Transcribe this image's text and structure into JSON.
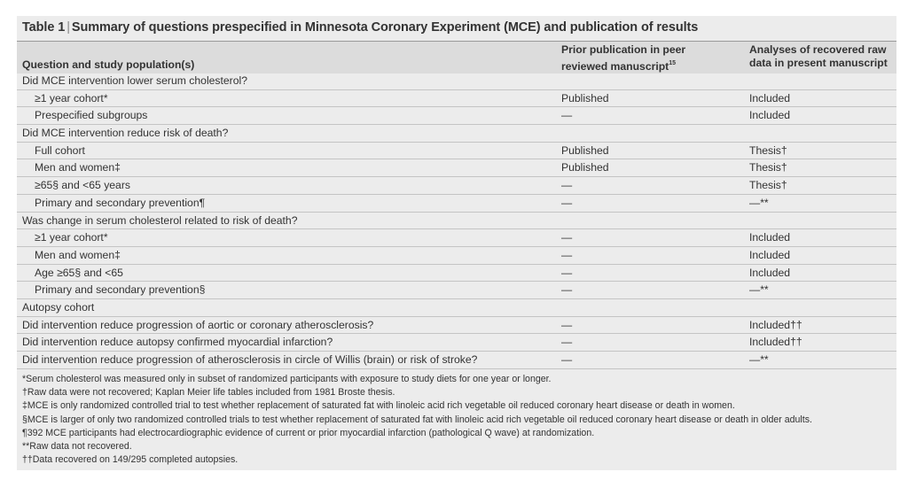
{
  "table": {
    "label": "Table 1",
    "separator": "|",
    "caption": "Summary of questions prespecified in Minnesota Coronary Experiment (MCE) and publication of results",
    "headers": {
      "question": "Question and study population(s)",
      "prior_line1": "Prior publication in peer",
      "prior_line2": "reviewed manuscript",
      "prior_ref": "15",
      "analyses_line1": "Analyses of recovered raw",
      "analyses_line2": "data in present manuscript"
    },
    "rows": [
      {
        "question": "Did MCE intervention lower serum cholesterol?",
        "prior": "",
        "analyses": "",
        "indent": false
      },
      {
        "question": "≥1 year cohort*",
        "prior": "Published",
        "analyses": "Included",
        "indent": true
      },
      {
        "question": "Prespecified subgroups",
        "prior": "—",
        "analyses": "Included",
        "indent": true
      },
      {
        "question": "Did MCE intervention reduce risk of death?",
        "prior": "",
        "analyses": "",
        "indent": false
      },
      {
        "question": "Full cohort",
        "prior": "Published",
        "analyses": "Thesis†",
        "indent": true
      },
      {
        "question": "Men and women‡",
        "prior": "Published",
        "analyses": "Thesis†",
        "indent": true
      },
      {
        "question": "≥65§ and <65 years",
        "prior": "—",
        "analyses": "Thesis†",
        "indent": true
      },
      {
        "question": "Primary and secondary prevention¶",
        "prior": "—",
        "analyses": "—**",
        "indent": true
      },
      {
        "question": "Was change in serum cholesterol related to risk of death?",
        "prior": "",
        "analyses": "",
        "indent": false
      },
      {
        "question": "≥1 year cohort*",
        "prior": "—",
        "analyses": "Included",
        "indent": true
      },
      {
        "question": "Men and women‡",
        "prior": "—",
        "analyses": "Included",
        "indent": true
      },
      {
        "question": "Age ≥65§ and <65",
        "prior": "—",
        "analyses": "Included",
        "indent": true
      },
      {
        "question": "Primary and secondary prevention§",
        "prior": "—",
        "analyses": "—**",
        "indent": true
      },
      {
        "question": "Autopsy cohort",
        "prior": "",
        "analyses": "",
        "indent": false
      },
      {
        "question": "Did intervention reduce progression of aortic or coronary atherosclerosis?",
        "prior": "—",
        "analyses": "Included††",
        "indent": false
      },
      {
        "question": "Did intervention reduce autopsy confirmed myocardial infarction?",
        "prior": "—",
        "analyses": "Included††",
        "indent": false
      },
      {
        "question": "Did intervention reduce progression of atherosclerosis in circle of Willis (brain) or risk of stroke?",
        "prior": "—",
        "analyses": "—**",
        "indent": false
      }
    ],
    "footnotes": [
      "*Serum cholesterol was measured only in subset of randomized participants with exposure to study diets for one year or longer.",
      "†Raw data were not recovered; Kaplan Meier life tables included from 1981 Broste thesis.",
      "‡MCE is only randomized controlled trial to test whether replacement of saturated fat with linoleic acid rich vegetable oil reduced coronary heart disease or death in women.",
      "§MCE is larger of only two randomized controlled trials to test whether replacement of saturated fat with linoleic acid rich vegetable oil reduced coronary heart disease or death in older adults.",
      "¶392 MCE participants had electrocardiographic evidence of current or prior myocardial infarction (pathological Q wave) at randomization.",
      "**Raw data not recovered.",
      "††Data recovered on 149/295 completed autopsies."
    ]
  }
}
